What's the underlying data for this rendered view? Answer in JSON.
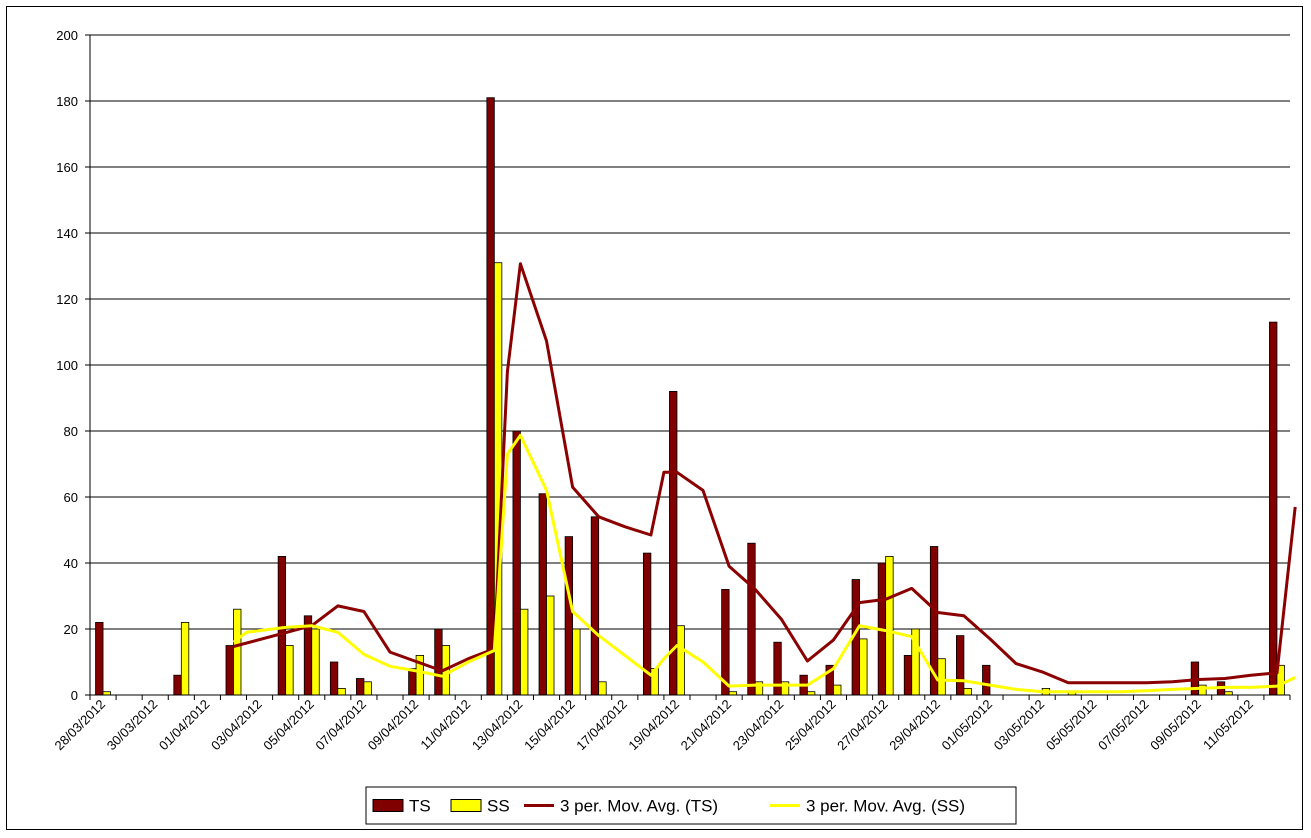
{
  "chart_data": {
    "type": "bar",
    "title": "",
    "xlabel": "",
    "ylabel": "",
    "ylim": [
      0,
      200
    ],
    "y_ticks": [
      0,
      20,
      40,
      60,
      80,
      100,
      120,
      140,
      160,
      180,
      200
    ],
    "grid": "horizontal",
    "legend_position": "bottom",
    "categories": [
      "28/03/2012",
      "29/03/2012",
      "30/03/2012",
      "31/03/2012",
      "01/04/2012",
      "02/04/2012",
      "03/04/2012",
      "04/04/2012",
      "05/04/2012",
      "06/04/2012",
      "07/04/2012",
      "08/04/2012",
      "09/04/2012",
      "10/04/2012",
      "11/04/2012",
      "12/04/2012",
      "13/04/2012",
      "14/04/2012",
      "15/04/2012",
      "16/04/2012",
      "17/04/2012",
      "18/04/2012",
      "19/04/2012",
      "20/04/2012",
      "21/04/2012",
      "22/04/2012",
      "23/04/2012",
      "24/04/2012",
      "25/04/2012",
      "26/04/2012",
      "27/04/2012",
      "28/04/2012",
      "29/04/2012",
      "30/04/2012",
      "01/05/2012",
      "02/05/2012",
      "03/05/2012",
      "04/05/2012",
      "05/05/2012",
      "06/05/2012",
      "07/05/2012",
      "08/05/2012",
      "09/05/2012",
      "10/05/2012",
      "11/05/2012",
      "12/05/2012"
    ],
    "tick_labels": [
      "28/03/2012",
      "30/03/2012",
      "01/04/2012",
      "03/04/2012",
      "05/04/2012",
      "07/04/2012",
      "09/04/2012",
      "11/04/2012",
      "13/04/2012",
      "15/04/2012",
      "17/04/2012",
      "19/04/2012",
      "21/04/2012",
      "23/04/2012",
      "25/04/2012",
      "27/04/2012",
      "29/04/2012",
      "01/05/2012",
      "03/05/2012",
      "05/05/2012",
      "07/05/2012",
      "09/05/2012",
      "11/05/2012"
    ],
    "series": [
      {
        "name": "TS",
        "kind": "bar",
        "color": "#800000",
        "values": [
          22,
          0,
          0,
          6,
          0,
          15,
          0,
          42,
          24,
          10,
          5,
          0,
          8,
          20,
          0,
          181,
          80,
          61,
          48,
          54,
          0,
          43,
          92,
          0,
          32,
          46,
          16,
          6,
          9,
          35,
          40,
          12,
          45,
          18,
          9,
          0,
          0,
          0,
          0,
          0,
          0,
          0,
          10,
          4,
          0,
          113
        ]
      },
      {
        "name": "SS",
        "kind": "bar",
        "color": "#FFFF00",
        "values": [
          1,
          0,
          0,
          22,
          0,
          26,
          0,
          15,
          20,
          2,
          4,
          0,
          12,
          15,
          0,
          131,
          26,
          30,
          20,
          4,
          0,
          8,
          21,
          0,
          1,
          4,
          4,
          1,
          3,
          17,
          42,
          20,
          11,
          2,
          0,
          0,
          2,
          1,
          0,
          0,
          0,
          0,
          3,
          1,
          0,
          9
        ]
      },
      {
        "name": "3 per. Mov. Avg. (TS)",
        "kind": "line",
        "color": "#8B0000",
        "points": [
          [
            5,
            14.7
          ],
          [
            8,
            21
          ],
          [
            9,
            27
          ],
          [
            10,
            25.3
          ],
          [
            11,
            13
          ],
          [
            13,
            7.3
          ],
          [
            14,
            11
          ],
          [
            15,
            14
          ],
          [
            15.5,
            98
          ],
          [
            16,
            130.7
          ],
          [
            17,
            107.3
          ],
          [
            18,
            63
          ],
          [
            19,
            54
          ],
          [
            20,
            51
          ],
          [
            21,
            48.5
          ],
          [
            21.5,
            67.5
          ],
          [
            22,
            67.5
          ],
          [
            23,
            62
          ],
          [
            24,
            39
          ],
          [
            25,
            32
          ],
          [
            26,
            23
          ],
          [
            27,
            10.3
          ],
          [
            28,
            16.7
          ],
          [
            29,
            28
          ],
          [
            30,
            29
          ],
          [
            31,
            32.3
          ],
          [
            32,
            25
          ],
          [
            33,
            24
          ],
          [
            34,
            17
          ],
          [
            35,
            9.5
          ],
          [
            36,
            7
          ],
          [
            37,
            3.7
          ],
          [
            38,
            3.7
          ],
          [
            39,
            3.7
          ],
          [
            40,
            3.7
          ],
          [
            41,
            4
          ],
          [
            42,
            4.7
          ],
          [
            43,
            5
          ],
          [
            44,
            6
          ],
          [
            45,
            6.7
          ],
          [
            45.7,
            57
          ]
        ]
      },
      {
        "name": "3 per. Mov. Avg. (SS)",
        "kind": "line",
        "color": "#FFFF00",
        "points": [
          [
            5,
            16
          ],
          [
            5.5,
            19
          ],
          [
            6,
            19.5
          ],
          [
            7,
            20.5
          ],
          [
            8,
            21
          ],
          [
            9,
            19
          ],
          [
            10,
            12.3
          ],
          [
            11,
            8.7
          ],
          [
            12,
            7.3
          ],
          [
            13,
            5.7
          ],
          [
            14,
            10
          ],
          [
            15,
            13.5
          ],
          [
            15.5,
            73
          ],
          [
            16,
            78.7
          ],
          [
            17,
            62
          ],
          [
            18,
            25.3
          ],
          [
            19,
            18
          ],
          [
            20,
            12
          ],
          [
            21,
            6
          ],
          [
            21.5,
            11
          ],
          [
            22,
            15
          ],
          [
            23,
            10
          ],
          [
            24,
            2.7
          ],
          [
            25,
            3
          ],
          [
            26,
            3
          ],
          [
            27,
            3
          ],
          [
            28,
            8
          ],
          [
            29,
            21
          ],
          [
            30,
            19.5
          ],
          [
            31,
            17.7
          ],
          [
            32,
            4.5
          ],
          [
            33,
            4.3
          ],
          [
            34,
            3
          ],
          [
            35,
            1.7
          ],
          [
            36,
            1
          ],
          [
            37,
            1
          ],
          [
            38,
            1
          ],
          [
            39,
            1
          ],
          [
            40,
            1.3
          ],
          [
            41,
            1.7
          ],
          [
            42,
            2
          ],
          [
            43,
            2.3
          ],
          [
            44,
            2.3
          ],
          [
            45,
            2.7
          ],
          [
            45.7,
            5.3
          ]
        ]
      }
    ]
  }
}
